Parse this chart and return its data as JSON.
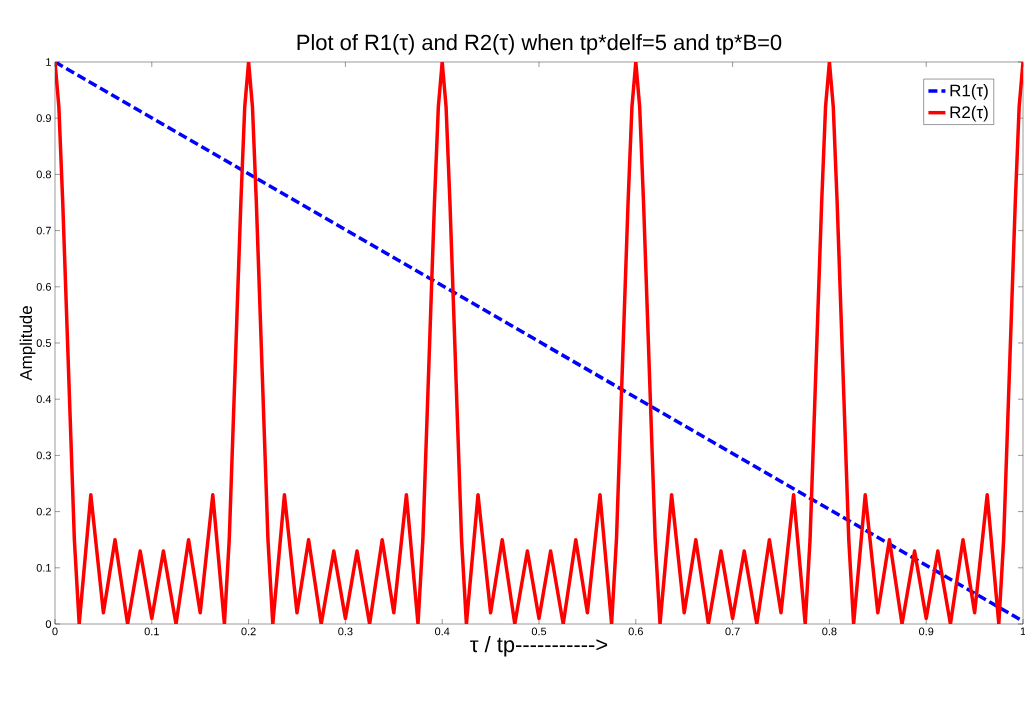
{
  "chart_data": {
    "type": "line",
    "title": "Plot of R1(τ) and R2(τ) when tp*delf=5 and tp*B=0",
    "xlabel": "τ / tp----------->",
    "ylabel": "Amplitude",
    "xlim": [
      0,
      1
    ],
    "ylim": [
      0,
      1
    ],
    "xticks": [
      0,
      0.1,
      0.2,
      0.3,
      0.4,
      0.5,
      0.6,
      0.7,
      0.8,
      0.9,
      1
    ],
    "yticks": [
      0,
      0.1,
      0.2,
      0.3,
      0.4,
      0.5,
      0.6,
      0.7,
      0.8,
      0.9,
      1
    ],
    "grid": false,
    "legend": "top right",
    "series": [
      {
        "name": "R1(τ)",
        "color": "#0000ff",
        "line_style": "dashed",
        "x": [
          0,
          1
        ],
        "values": [
          1,
          0.005
        ]
      },
      {
        "name": "R2(τ)",
        "color": "#ff0000",
        "line_style": "solid",
        "x": [
          0,
          0.004,
          0.008,
          0.012,
          0.016,
          0.02,
          0.025,
          0.037,
          0.05,
          0.062,
          0.075,
          0.088,
          0.1,
          0.112,
          0.125,
          0.138,
          0.15,
          0.163,
          0.175,
          0.18,
          0.184,
          0.188,
          0.192,
          0.196,
          0.2,
          0.204,
          0.208,
          0.212,
          0.216,
          0.22,
          0.225,
          0.237,
          0.25,
          0.262,
          0.275,
          0.288,
          0.3,
          0.312,
          0.325,
          0.338,
          0.35,
          0.363,
          0.375,
          0.38,
          0.384,
          0.388,
          0.392,
          0.396,
          0.4,
          0.404,
          0.408,
          0.412,
          0.416,
          0.42,
          0.425,
          0.437,
          0.45,
          0.462,
          0.475,
          0.488,
          0.5,
          0.512,
          0.525,
          0.538,
          0.55,
          0.563,
          0.575,
          0.58,
          0.584,
          0.588,
          0.592,
          0.596,
          0.6,
          0.604,
          0.608,
          0.612,
          0.616,
          0.62,
          0.625,
          0.637,
          0.65,
          0.662,
          0.675,
          0.688,
          0.7,
          0.712,
          0.725,
          0.738,
          0.75,
          0.763,
          0.775,
          0.78,
          0.784,
          0.788,
          0.792,
          0.796,
          0.8,
          0.804,
          0.808,
          0.812,
          0.816,
          0.82,
          0.825,
          0.837,
          0.85,
          0.862,
          0.875,
          0.888,
          0.9,
          0.912,
          0.925,
          0.938,
          0.95,
          0.963,
          0.975,
          0.98,
          0.984,
          0.988,
          0.992,
          0.996,
          1
        ],
        "values": [
          1,
          0.92,
          0.75,
          0.55,
          0.35,
          0.15,
          0,
          0.23,
          0.02,
          0.15,
          0,
          0.13,
          0.01,
          0.13,
          0,
          0.15,
          0.02,
          0.23,
          0,
          0.15,
          0.35,
          0.55,
          0.75,
          0.92,
          1,
          0.92,
          0.75,
          0.55,
          0.35,
          0.15,
          0,
          0.23,
          0.02,
          0.15,
          0,
          0.13,
          0.01,
          0.13,
          0,
          0.15,
          0.02,
          0.23,
          0,
          0.15,
          0.35,
          0.55,
          0.75,
          0.92,
          1,
          0.92,
          0.75,
          0.55,
          0.35,
          0.15,
          0,
          0.23,
          0.02,
          0.15,
          0,
          0.13,
          0.01,
          0.13,
          0,
          0.15,
          0.02,
          0.23,
          0,
          0.15,
          0.35,
          0.55,
          0.75,
          0.92,
          1,
          0.92,
          0.75,
          0.55,
          0.35,
          0.15,
          0,
          0.23,
          0.02,
          0.15,
          0,
          0.13,
          0.01,
          0.13,
          0,
          0.15,
          0.02,
          0.23,
          0,
          0.15,
          0.35,
          0.55,
          0.75,
          0.92,
          1,
          0.92,
          0.75,
          0.55,
          0.35,
          0.15,
          0,
          0.23,
          0.02,
          0.15,
          0,
          0.13,
          0.01,
          0.13,
          0,
          0.15,
          0.02,
          0.23,
          0,
          0.15,
          0.35,
          0.55,
          0.75,
          0.92,
          1
        ]
      }
    ]
  }
}
